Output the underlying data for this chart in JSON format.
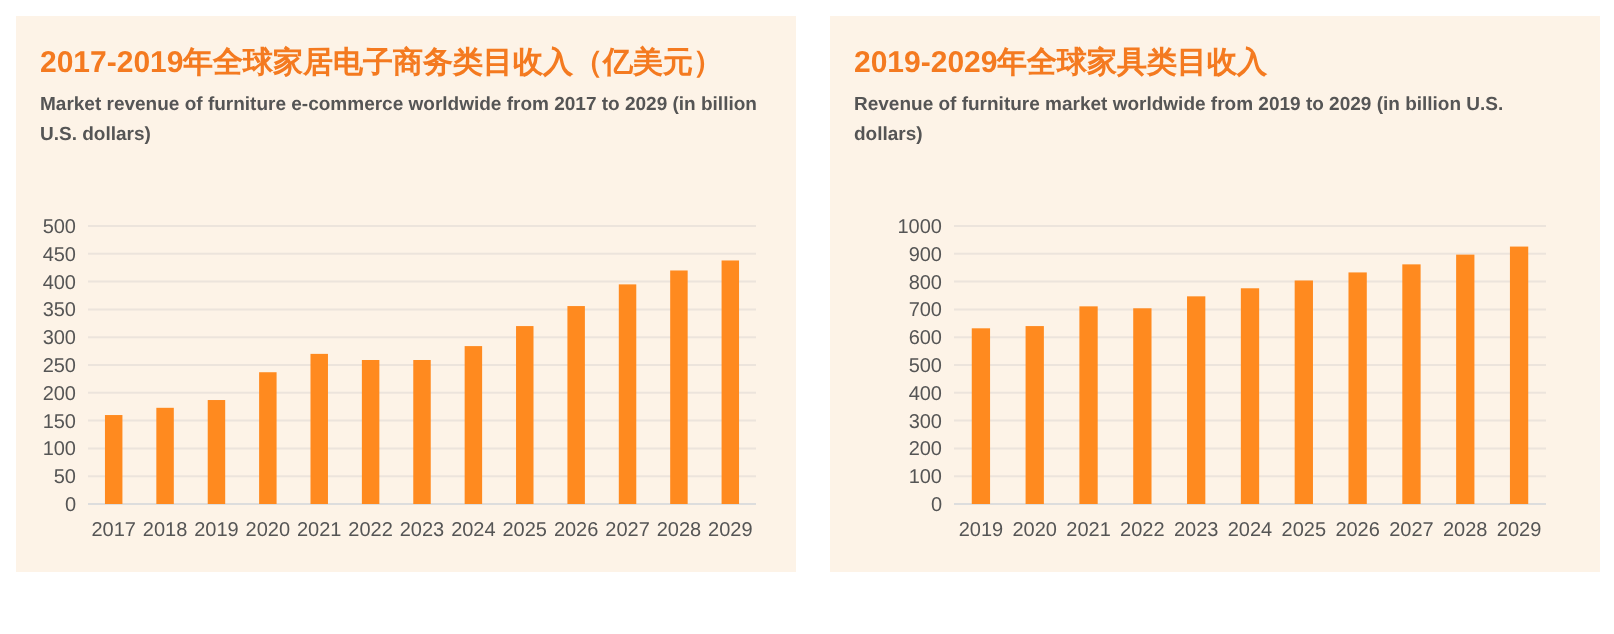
{
  "chart_data": [
    {
      "type": "bar",
      "title": "2017-2019年全球家居电子商务类目收入（亿美元）",
      "subtitle": "Market revenue of furniture e-commerce worldwide from 2017 to 2029  (in billion U.S. dollars)",
      "categories": [
        "2017",
        "2018",
        "2019",
        "2020",
        "2021",
        "2022",
        "2023",
        "2024",
        "2025",
        "2026",
        "2027",
        "2028",
        "2029"
      ],
      "values": [
        160,
        173,
        187,
        237,
        270,
        259,
        259,
        284,
        320,
        356,
        395,
        420,
        438
      ],
      "color": "#ff8a1f",
      "ylim": [
        0,
        500
      ],
      "yticks": [
        0,
        50,
        100,
        150,
        200,
        250,
        300,
        350,
        400,
        450,
        500
      ],
      "grid": "y"
    },
    {
      "type": "bar",
      "title": "2019-2029年全球家具类目收入",
      "subtitle": "Revenue of furniture market worldwide from 2019 to 2029  (in billion U.S. dollars)",
      "categories": [
        "2019",
        "2020",
        "2021",
        "2022",
        "2023",
        "2024",
        "2025",
        "2026",
        "2027",
        "2028",
        "2029"
      ],
      "values": [
        632,
        640,
        711,
        704,
        747,
        776,
        804,
        833,
        862,
        897,
        926
      ],
      "color": "#ff8a1f",
      "ylim": [
        0,
        1000
      ],
      "yticks": [
        0,
        100,
        200,
        300,
        400,
        500,
        600,
        700,
        800,
        900,
        1000
      ],
      "grid": "y"
    }
  ]
}
